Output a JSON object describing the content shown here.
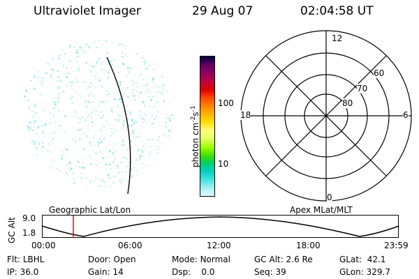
{
  "header": {
    "instrument": "Ultraviolet Imager",
    "date": "29 Aug 07",
    "time": "02:04:58 UT"
  },
  "colorbar": {
    "unit_text": "photon cm",
    "unit_exp1": "-2",
    "unit_s": "s",
    "unit_exp2": "-1",
    "ticks": [
      "100",
      "10"
    ],
    "colors": [
      "#000040",
      "#600060",
      "#900060",
      "#c00040",
      "#e00000",
      "#ff4000",
      "#ff8000",
      "#ffb000",
      "#ffe000",
      "#ffff80",
      "#e0ff60",
      "#a0ff00",
      "#40e000",
      "#00d060",
      "#00d0c0",
      "#40e0e0",
      "#a0f0f0",
      "#e0ffff"
    ]
  },
  "polar": {
    "mlt_labels": [
      "12",
      "18",
      "6",
      "0"
    ],
    "lat_labels": [
      "60",
      "70",
      "80"
    ]
  },
  "imager": {
    "speckle_color": "#a8e8e8",
    "accent_color": "#40c8d8"
  },
  "timeline": {
    "axis_label": "GC Alt",
    "y_labels": [
      "9.0",
      "1.8"
    ],
    "left_title": "Geographic Lat/Lon",
    "right_title": "Apex MLat/MLT",
    "x_labels": [
      "00:00",
      "06:00",
      "12:00",
      "18:00",
      "23:59"
    ],
    "marker_color": "#ff0000"
  },
  "status": {
    "rows": [
      [
        {
          "label": "Flt:",
          "value": "LBHL"
        },
        {
          "label": "Door:",
          "value": "Open"
        },
        {
          "label": "Mode:",
          "value": "Normal"
        },
        {
          "label": "GC Alt:",
          "value": "2.6 Re"
        },
        {
          "label": "GLat:",
          "value": "42.1"
        }
      ],
      [
        {
          "label": "IP:",
          "value": "36.0"
        },
        {
          "label": "Gain:",
          "value": "14"
        },
        {
          "label": "Dsp:",
          "value": "0.0"
        },
        {
          "label": "Seq:",
          "value": "39"
        },
        {
          "label": "GLon:",
          "value": "329.7"
        }
      ]
    ]
  }
}
